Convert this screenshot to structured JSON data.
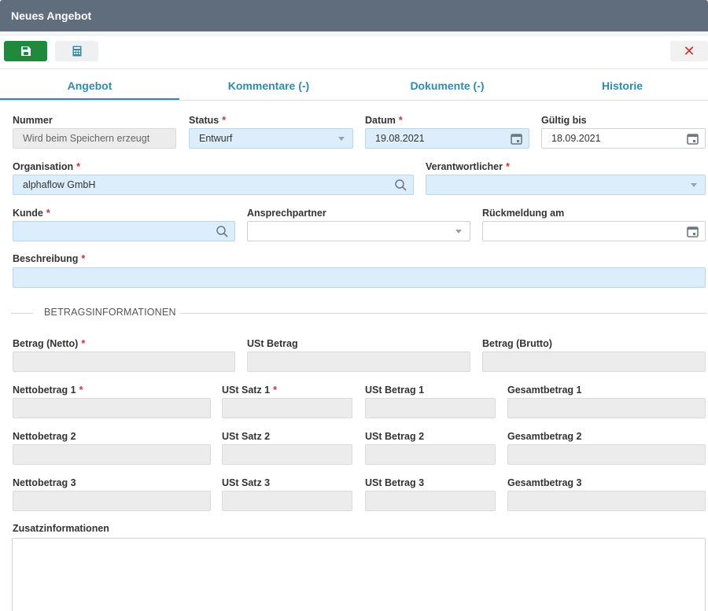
{
  "window": {
    "title": "Neues Angebot"
  },
  "toolbar": {
    "save_icon": "floppy-disk-icon",
    "calc_icon": "calculator-icon",
    "close_label": "✕"
  },
  "tabs": [
    {
      "label": "Angebot"
    },
    {
      "label": "Kommentare (-)"
    },
    {
      "label": "Dokumente (-)"
    },
    {
      "label": "Historie"
    }
  ],
  "form": {
    "nummer": {
      "label": "Nummer",
      "value": "Wird beim Speichern erzeugt"
    },
    "status": {
      "label": "Status",
      "value": "Entwurf"
    },
    "datum": {
      "label": "Datum",
      "value": "19.08.2021"
    },
    "gueltig_bis": {
      "label": "Gültig bis",
      "value": "18.09.2021"
    },
    "organisation": {
      "label": "Organisation",
      "value": "alphaflow GmbH"
    },
    "verantwortlicher": {
      "label": "Verantwortlicher",
      "value": ""
    },
    "kunde": {
      "label": "Kunde",
      "value": ""
    },
    "ansprechpartner": {
      "label": "Ansprechpartner",
      "value": ""
    },
    "rueckmeldung": {
      "label": "Rückmeldung am",
      "value": ""
    },
    "beschreibung": {
      "label": "Beschreibung",
      "value": ""
    }
  },
  "betrag_section": {
    "title": "BETRAGSINFORMATIONEN"
  },
  "betrag": {
    "netto": {
      "label": "Betrag (Netto)"
    },
    "ust": {
      "label": "USt Betrag"
    },
    "brutto": {
      "label": "Betrag (Brutto)"
    }
  },
  "rows": [
    {
      "netto": "Nettobetrag 1",
      "satz": "USt Satz 1",
      "ust": "USt Betrag 1",
      "gesamt": "Gesamtbetrag 1"
    },
    {
      "netto": "Nettobetrag 2",
      "satz": "USt Satz 2",
      "ust": "USt Betrag 2",
      "gesamt": "Gesamtbetrag 2"
    },
    {
      "netto": "Nettobetrag 3",
      "satz": "USt Satz 3",
      "ust": "USt Betrag 3",
      "gesamt": "Gesamtbetrag 3"
    }
  ],
  "zusatz": {
    "label": "Zusatzinformationen",
    "value": ""
  },
  "required_marker": "*",
  "colors": {
    "accent": "#2d8bb5",
    "save": "#1f8a3c",
    "required": "#d32f2f",
    "titlebar": "#5f6d7c"
  }
}
